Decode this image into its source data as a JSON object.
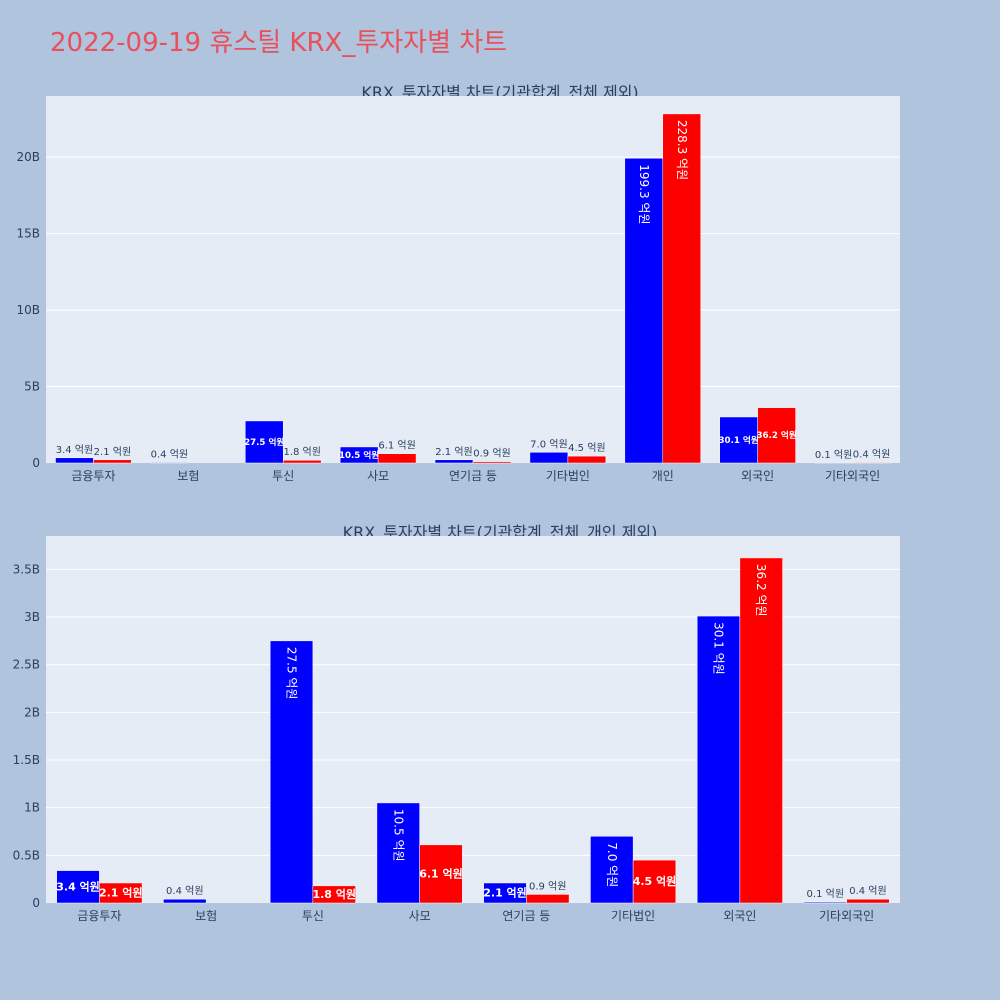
{
  "page": {
    "title": "2022-09-19 휴스틸 KRX_투자자별 차트"
  },
  "colors": {
    "buy": "#0000ff",
    "sell": "#ff0000",
    "plot_bg": "#e5ecf6",
    "paper_bg": "#b0c4de",
    "title": "#e8505b"
  },
  "chart_data": [
    {
      "type": "bar",
      "title": "KRX_투자자별 차트(기관합계_전체 제외)",
      "categories": [
        "금융투자",
        "보험",
        "투신",
        "사모",
        "연기금 등",
        "기타법인",
        "개인",
        "외국인",
        "기타외국인"
      ],
      "series": [
        {
          "color": "#0000ff",
          "values": [
            0.34,
            0.04,
            2.75,
            1.05,
            0.21,
            0.7,
            19.93,
            3.01,
            0.01
          ],
          "labels": [
            "3.4 억원",
            "0.4 억원",
            "27.5 억원",
            "10.5 억원",
            "2.1 억원",
            "7.0 억원",
            "199.3 억원",
            "30.1 억원",
            "0.1 억원"
          ]
        },
        {
          "color": "#ff0000",
          "values": [
            0.21,
            0,
            0.18,
            0.61,
            0.09,
            0.45,
            22.83,
            3.62,
            0.04
          ],
          "labels": [
            "2.1 억원",
            "",
            "1.8 억원",
            "6.1 억원",
            "0.9 억원",
            "4.5 억원",
            "228.3 억원",
            "36.2 억원",
            "0.4 억원"
          ]
        }
      ],
      "yticks": [
        "0",
        "5B",
        "10B",
        "15B",
        "20B"
      ],
      "ytick_values": [
        0,
        5,
        10,
        15,
        20
      ],
      "ylim": [
        0,
        24
      ],
      "unit": "B",
      "grid": true
    },
    {
      "type": "bar",
      "title": "KRX_투자자별 차트(기관합계_전체_개인 제외)",
      "categories": [
        "금융투자",
        "보험",
        "투신",
        "사모",
        "연기금 등",
        "기타법인",
        "외국인",
        "기타외국인"
      ],
      "series": [
        {
          "color": "#0000ff",
          "values": [
            0.34,
            0.04,
            2.75,
            1.05,
            0.21,
            0.7,
            3.01,
            0.01
          ],
          "labels": [
            "3.4 억원",
            "0.4 억원",
            "27.5 억원",
            "10.5 억원",
            "2.1 억원",
            "7.0 억원",
            "30.1 억원",
            "0.1 억원"
          ]
        },
        {
          "color": "#ff0000",
          "values": [
            0.21,
            0,
            0.18,
            0.61,
            0.09,
            0.45,
            3.62,
            0.04
          ],
          "labels": [
            "2.1 억원",
            "",
            "1.8 억원",
            "6.1 억원",
            "0.9 억원",
            "4.5 억원",
            "36.2 억원",
            "0.4 억원"
          ]
        }
      ],
      "yticks": [
        "0",
        "0.5B",
        "1B",
        "1.5B",
        "2B",
        "2.5B",
        "3B",
        "3.5B"
      ],
      "ytick_values": [
        0,
        0.5,
        1,
        1.5,
        2,
        2.5,
        3,
        3.5
      ],
      "ylim": [
        0,
        3.85
      ],
      "unit": "B",
      "grid": true
    }
  ]
}
